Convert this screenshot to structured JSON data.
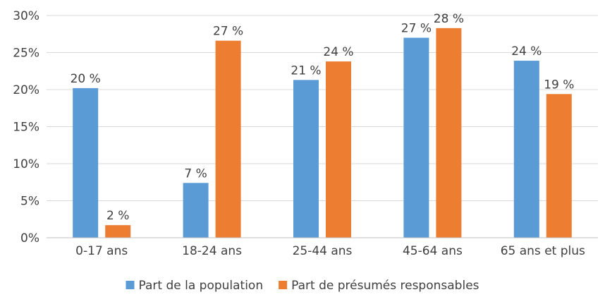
{
  "chart_data": {
    "type": "bar",
    "title": "",
    "xlabel": "",
    "ylabel": "",
    "categories": [
      "0-17 ans",
      "18-24 ans",
      "25-44 ans",
      "45-64 ans",
      "65 ans et plus"
    ],
    "series": [
      {
        "name": "Part de la population",
        "color": "#5B9BD5",
        "values": [
          20.2,
          7.4,
          21.3,
          27.0,
          23.9
        ],
        "labels": [
          "20 %",
          "7 %",
          "21 %",
          "27 %",
          "24 %"
        ]
      },
      {
        "name": "Part de présumés responsables",
        "color": "#ED7D31",
        "values": [
          1.7,
          26.6,
          23.8,
          28.3,
          19.4
        ],
        "labels": [
          "2 %",
          "27 %",
          "24 %",
          "28 %",
          "19 %"
        ]
      }
    ],
    "ylim": [
      0,
      30
    ],
    "yticks": [
      {
        "value": 0,
        "label": "0%"
      },
      {
        "value": 5,
        "label": "5%"
      },
      {
        "value": 10,
        "label": "10%"
      },
      {
        "value": 15,
        "label": "15%"
      },
      {
        "value": 20,
        "label": "20%"
      },
      {
        "value": 25,
        "label": "25%"
      },
      {
        "value": 30,
        "label": "30%"
      }
    ],
    "grid": true,
    "legend_position": "bottom"
  }
}
